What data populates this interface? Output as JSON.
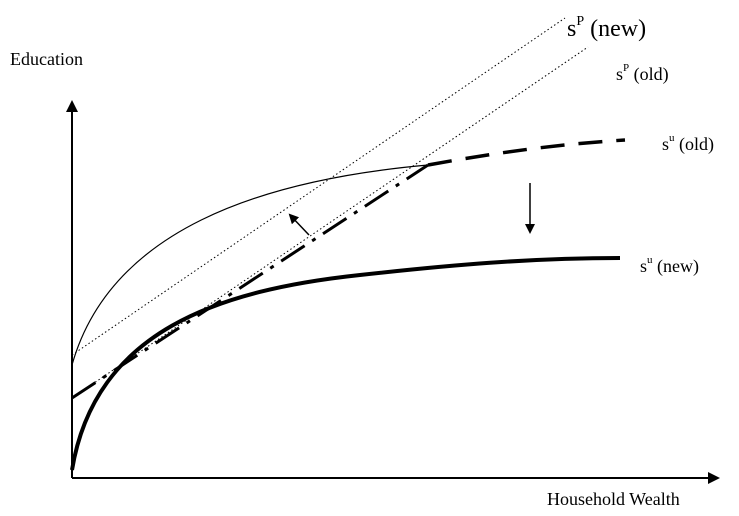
{
  "axes": {
    "y_label": "Education",
    "x_label": "Household Wealth"
  },
  "curves": {
    "sp_new": {
      "base": "s",
      "sup": "P",
      "suffix": " (new)"
    },
    "sp_old": {
      "base": "s",
      "sup": "P",
      "suffix": " (old)"
    },
    "su_old": {
      "base": "s",
      "sup": "u",
      "suffix": " (old)"
    },
    "su_new": {
      "base": "s",
      "sup": "u",
      "suffix": " (new)"
    }
  },
  "colors": {
    "ink": "#000000",
    "background": "#ffffff"
  }
}
